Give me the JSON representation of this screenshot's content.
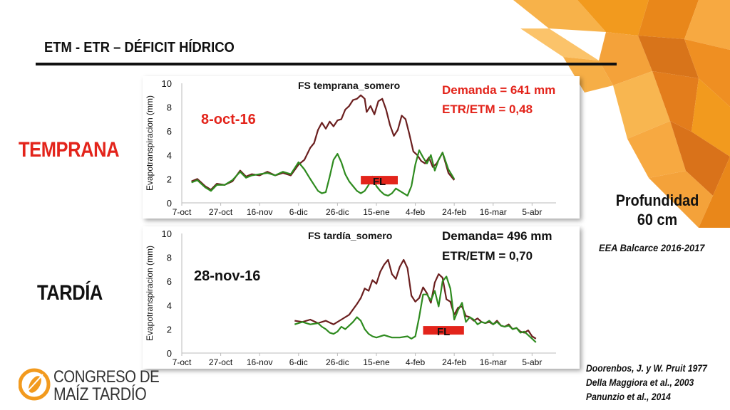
{
  "slide": {
    "title": "ETM - ETR – DÉFICIT HÍDRICO",
    "label_temprana": "TEMPRANA",
    "label_tardia": "TARDÍA",
    "profundidad_line1": "Profundidad",
    "profundidad_line2": "60 cm",
    "eea": "EEA Balcarce 2016-2017",
    "refs": [
      "Doorenbos, J.  y W. Pruit 1977",
      "Della Maggiora et al., 2003",
      "Panunzio et al., 2014"
    ],
    "logo_line1": "CONGRESO DE",
    "logo_line2": "MAÍZ TARDÍO"
  },
  "colors": {
    "etm": "#6b1f1f",
    "etr": "#2e8b1f",
    "accent": "#e3241b",
    "orange": "#f29a1e"
  },
  "chart_data": [
    {
      "type": "line",
      "title": "FS temprana_somero",
      "ylabel": "Evapotranspiracion (mm)",
      "xlabel": "",
      "ylim": [
        0,
        10
      ],
      "yticks": [
        0,
        2,
        4,
        6,
        8,
        10
      ],
      "xlim": [
        0,
        185
      ],
      "xtick_labels": [
        "7-oct",
        "27-oct",
        "16-nov",
        "6-dic",
        "26-dic",
        "15-ene",
        "4-feb",
        "24-feb",
        "16-mar",
        "5-abr"
      ],
      "xtick_days": [
        0,
        20,
        40,
        60,
        80,
        100,
        120,
        140,
        160,
        180
      ],
      "sowing_label": "8-oct-16",
      "demand_text": "Demanda = 641 mm",
      "ratio_text": "ETR/ETM = 0,48",
      "fl_label": "FL",
      "fl_range_days": [
        92,
        111
      ],
      "fl_y": 1.9,
      "series": [
        {
          "key": "etm",
          "x": [
            5,
            8,
            12,
            15,
            18,
            22,
            26,
            30,
            33,
            36,
            40,
            44,
            48,
            52,
            56,
            60,
            63,
            66,
            68,
            70,
            72,
            74,
            76,
            78,
            80,
            82,
            84,
            86,
            88,
            90,
            92,
            94,
            95,
            97,
            99,
            101,
            103,
            105,
            107,
            109,
            111,
            113,
            115,
            117,
            119,
            121,
            123,
            125,
            127,
            129,
            131,
            134,
            137,
            140
          ],
          "values": [
            1.8,
            2.0,
            1.4,
            1.1,
            1.6,
            1.5,
            1.8,
            2.7,
            2.2,
            2.4,
            2.3,
            2.6,
            2.3,
            2.5,
            2.3,
            3.2,
            3.6,
            4.6,
            5.0,
            6.1,
            6.7,
            6.2,
            6.8,
            6.4,
            6.9,
            7.0,
            7.8,
            8.1,
            8.6,
            8.7,
            9.0,
            8.7,
            7.6,
            8.1,
            7.4,
            8.5,
            8.7,
            7.8,
            6.5,
            5.6,
            6.1,
            7.3,
            7.0,
            5.7,
            4.3,
            4.0,
            3.5,
            3.3,
            3.8,
            3.0,
            3.3,
            4.2,
            2.5,
            1.9
          ]
        },
        {
          "key": "etr",
          "x": [
            5,
            8,
            12,
            15,
            18,
            22,
            26,
            30,
            33,
            36,
            40,
            44,
            48,
            52,
            56,
            60,
            63,
            66,
            68,
            70,
            72,
            74,
            76,
            78,
            80,
            82,
            84,
            86,
            88,
            90,
            92,
            94,
            96,
            98,
            100,
            102,
            104,
            106,
            108,
            110,
            112,
            114,
            116,
            118,
            120,
            122,
            124,
            126,
            128,
            130,
            132,
            134,
            137,
            140
          ],
          "values": [
            1.7,
            1.9,
            1.3,
            1.0,
            1.5,
            1.5,
            1.9,
            2.6,
            2.1,
            2.3,
            2.4,
            2.5,
            2.3,
            2.6,
            2.4,
            3.4,
            2.8,
            2.0,
            1.5,
            1.0,
            0.8,
            0.9,
            2.2,
            3.6,
            4.1,
            3.4,
            2.4,
            1.8,
            1.4,
            1.0,
            0.8,
            1.0,
            1.5,
            2.2,
            1.4,
            1.0,
            0.7,
            0.6,
            0.8,
            1.2,
            1.0,
            0.8,
            0.6,
            1.4,
            3.2,
            4.4,
            3.8,
            3.3,
            4.0,
            2.7,
            3.6,
            4.2,
            2.8,
            2.0
          ]
        }
      ]
    },
    {
      "type": "line",
      "title": "FS tardía_somero",
      "ylabel": "Evapotranspiracion (mm)",
      "xlabel": "",
      "ylim": [
        0,
        10
      ],
      "yticks": [
        0,
        2,
        4,
        6,
        8,
        10
      ],
      "xlim": [
        0,
        185
      ],
      "xtick_labels": [
        "7-oct",
        "27-oct",
        "16-nov",
        "6-dic",
        "26-dic",
        "15-ene",
        "4-feb",
        "24-feb",
        "16-mar",
        "5-abr"
      ],
      "xtick_days": [
        0,
        20,
        40,
        60,
        80,
        100,
        120,
        140,
        160,
        180
      ],
      "sowing_label": "28-nov-16",
      "demand_text": "Demanda= 496  mm",
      "ratio_text": "ETR/ETM = 0,70",
      "fl_label": "FL",
      "fl_range_days": [
        124,
        145
      ],
      "fl_y": 1.9,
      "series": [
        {
          "key": "etm",
          "x": [
            58,
            62,
            66,
            70,
            74,
            78,
            82,
            86,
            90,
            92,
            94,
            96,
            98,
            100,
            102,
            104,
            106,
            108,
            110,
            112,
            114,
            116,
            118,
            120,
            122,
            124,
            126,
            128,
            130,
            132,
            134,
            136,
            138,
            140,
            142,
            144,
            146,
            148,
            150,
            152,
            154,
            156,
            158,
            160,
            162,
            164,
            166,
            168,
            170,
            172,
            174,
            176,
            178,
            180,
            182
          ],
          "values": [
            2.7,
            2.6,
            2.8,
            2.5,
            2.7,
            2.4,
            2.8,
            3.2,
            4.1,
            4.6,
            5.4,
            5.2,
            6.1,
            5.8,
            6.8,
            7.4,
            7.8,
            6.6,
            6.2,
            7.2,
            7.8,
            7.1,
            4.8,
            4.3,
            4.6,
            5.5,
            5.0,
            4.2,
            5.9,
            6.6,
            6.3,
            4.5,
            4.3,
            3.2,
            3.8,
            3.9,
            3.1,
            3.0,
            2.7,
            2.9,
            2.6,
            2.5,
            2.6,
            2.4,
            2.7,
            2.3,
            2.2,
            2.4,
            2.0,
            2.1,
            1.8,
            1.7,
            1.9,
            1.4,
            1.2
          ]
        },
        {
          "key": "etr",
          "x": [
            58,
            62,
            66,
            70,
            72,
            74,
            76,
            78,
            80,
            82,
            84,
            86,
            88,
            90,
            92,
            94,
            96,
            98,
            100,
            104,
            108,
            112,
            116,
            118,
            120,
            122,
            124,
            126,
            128,
            130,
            132,
            134,
            136,
            138,
            140,
            142,
            144,
            146,
            148,
            150,
            152,
            154,
            156,
            158,
            160,
            162,
            164,
            166,
            168,
            170,
            172,
            174,
            176,
            178,
            180,
            182
          ],
          "values": [
            2.4,
            2.6,
            2.4,
            2.5,
            2.2,
            2.0,
            1.7,
            1.6,
            1.8,
            2.2,
            2.0,
            2.3,
            2.6,
            3.0,
            2.7,
            2.0,
            1.6,
            1.4,
            1.3,
            1.5,
            1.3,
            1.3,
            1.4,
            1.2,
            1.4,
            3.0,
            4.9,
            4.9,
            4.4,
            5.2,
            3.9,
            6.0,
            6.4,
            5.4,
            2.8,
            3.6,
            4.2,
            2.6,
            3.0,
            2.8,
            2.4,
            2.6,
            2.5,
            2.7,
            2.4,
            2.6,
            2.3,
            2.2,
            2.3,
            2.0,
            2.1,
            1.7,
            1.8,
            1.5,
            1.2,
            0.9
          ]
        }
      ]
    }
  ]
}
